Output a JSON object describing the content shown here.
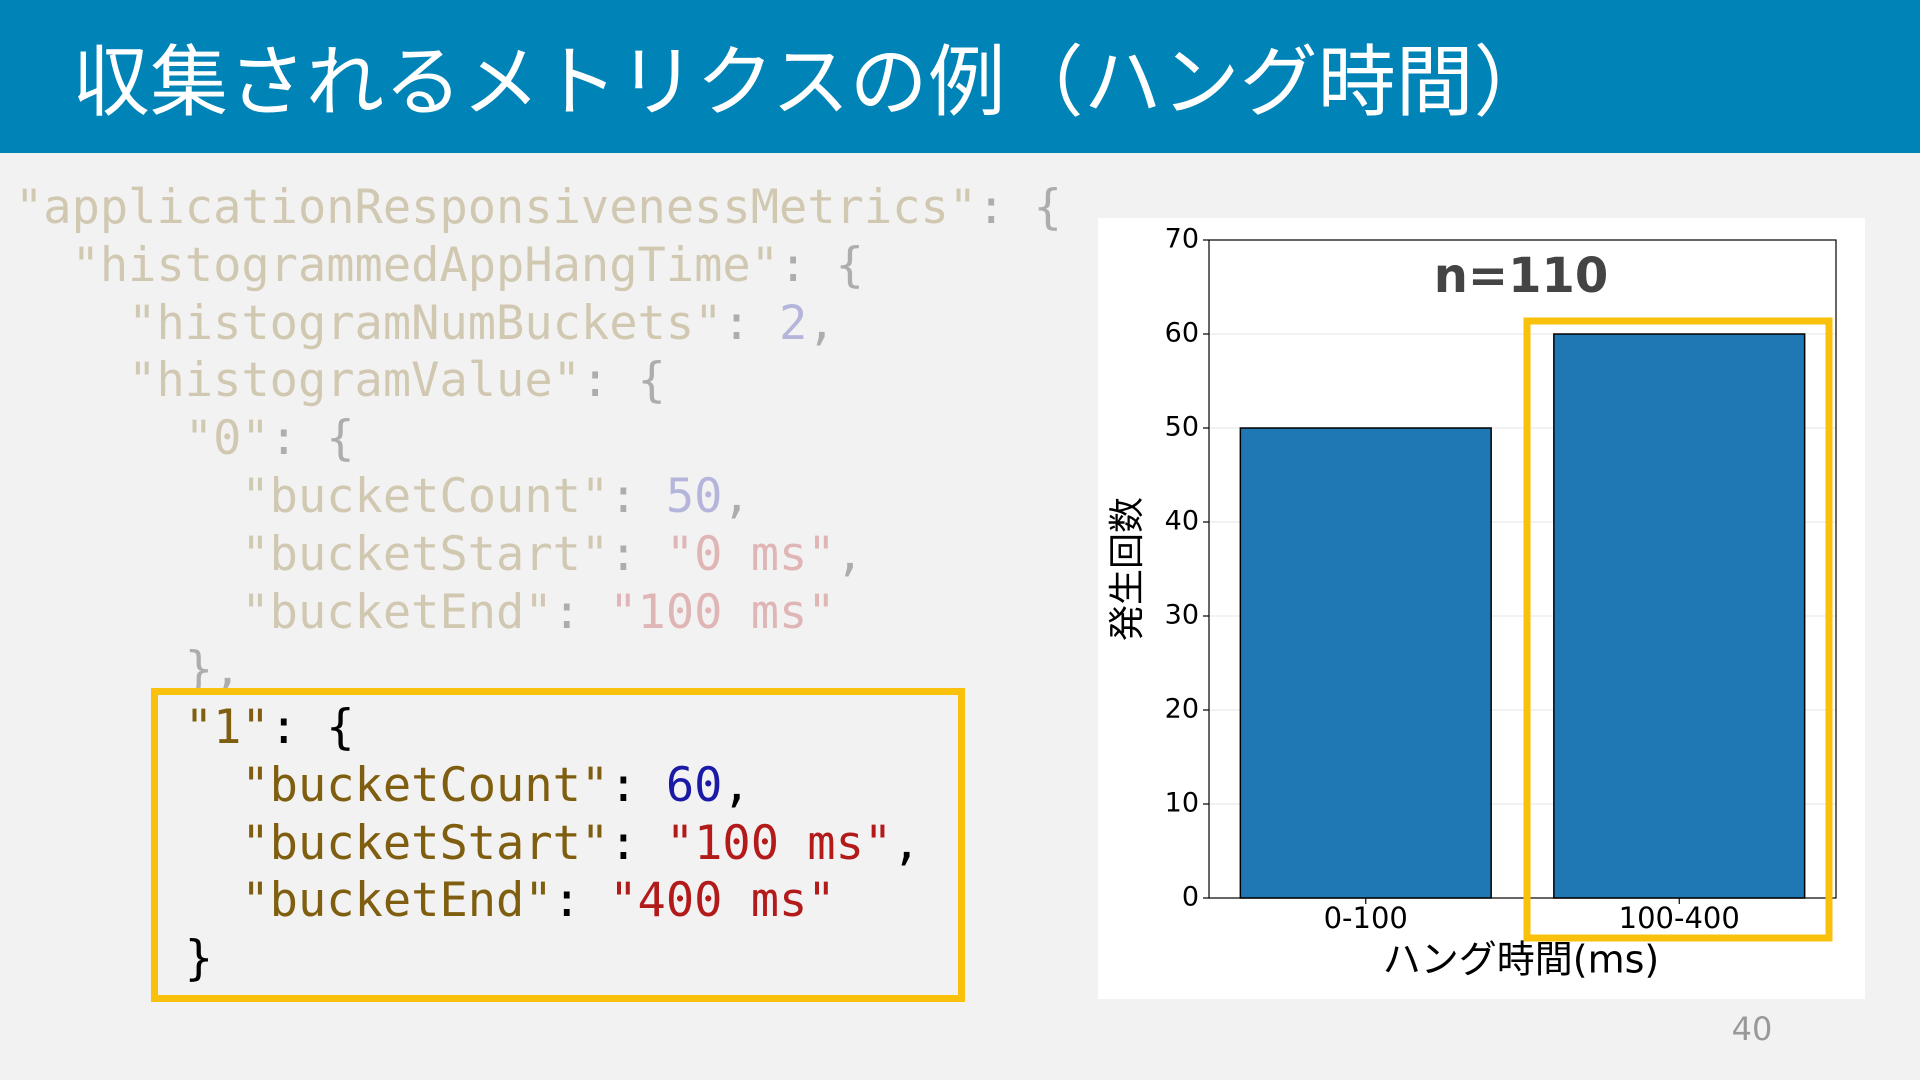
{
  "header": {
    "title": "収集されるメトリクスの例（ハング時間）"
  },
  "code": {
    "faded_lines": [
      [
        "\"applicationResponsivenessMetrics\"",
        ": {"
      ],
      [
        "  \"histogrammedAppHangTime\"",
        ": {"
      ],
      [
        "    \"histogramNumBuckets\"",
        ": ",
        "2",
        ","
      ],
      [
        "    \"histogramValue\"",
        ": {"
      ],
      [
        "      \"0\"",
        ": {"
      ],
      [
        "        \"bucketCount\"",
        ": ",
        "50",
        ","
      ],
      [
        "        \"bucketStart\"",
        ": ",
        "\"0 ms\"",
        ","
      ],
      [
        "        \"bucketEnd\"",
        ": ",
        "\"100 ms\""
      ],
      [
        "      },"
      ]
    ],
    "highlighted_lines": [
      [
        "      \"1\"",
        ": {"
      ],
      [
        "        \"bucketCount\"",
        ": ",
        "60",
        ","
      ],
      [
        "        \"bucketStart\"",
        ": ",
        "\"100 ms\"",
        ","
      ],
      [
        "        \"bucketEnd\"",
        ": ",
        "\"400 ms\""
      ],
      [
        "      }"
      ]
    ]
  },
  "chart_data": {
    "type": "bar",
    "title": "n=110",
    "categories": [
      "0-100",
      "100-400"
    ],
    "values": [
      50,
      60
    ],
    "color": "#1f77b4",
    "xlabel": "ハング時間(ms)",
    "ylabel": "発生回数",
    "ylim": [
      0,
      70
    ],
    "yticks": [
      0,
      10,
      20,
      30,
      40,
      50,
      60,
      70
    ],
    "grid": true
  },
  "page_number": "40"
}
